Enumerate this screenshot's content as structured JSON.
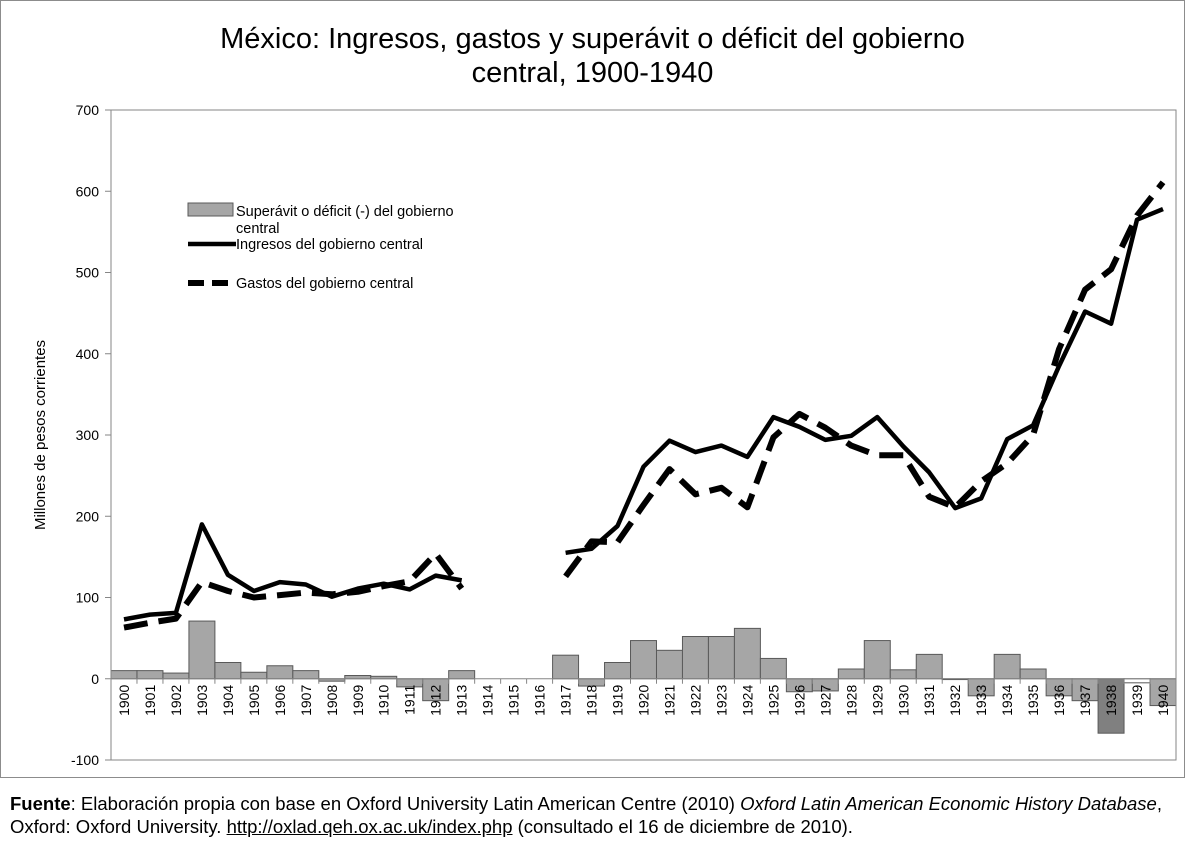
{
  "chart_data": {
    "type": "bar+line",
    "title": "México: Ingresos, gastos y superávit o déficit del gobierno\ncentral, 1900-1940",
    "ylabel": "Millones de pesos corrientes",
    "xlabel": "",
    "ylim": [
      -100,
      700
    ],
    "yticks": [
      -100,
      0,
      100,
      200,
      300,
      400,
      500,
      600,
      700
    ],
    "categories": [
      "1900",
      "1901",
      "1902",
      "1903",
      "1904",
      "1905",
      "1906",
      "1907",
      "1908",
      "1909",
      "1910",
      "1911",
      "1912",
      "1913",
      "1914",
      "1915",
      "1916",
      "1917",
      "1918",
      "1919",
      "1920",
      "1921",
      "1922",
      "1923",
      "1924",
      "1925",
      "1926",
      "1927",
      "1928",
      "1929",
      "1930",
      "1931",
      "1932",
      "1933",
      "1934",
      "1935",
      "1936",
      "1937",
      "1938",
      "1939",
      "1940"
    ],
    "legend_position": "top-left",
    "grid": false,
    "series": [
      {
        "name": "Superávit o déficit (-) del gobierno central",
        "kind": "bar",
        "color": "#a6a6a6",
        "values": [
          10,
          10,
          7,
          71,
          20,
          8,
          16,
          10,
          -3,
          4,
          3,
          -10,
          -27,
          10,
          null,
          null,
          null,
          29,
          -9,
          20,
          47,
          35,
          52,
          52,
          62,
          25,
          -16,
          -15,
          12,
          47,
          11,
          30,
          -1,
          -21,
          30,
          12,
          -21,
          -27,
          -67,
          -5,
          -33
        ],
        "highlight": [
          {
            "category": "1938",
            "color": "#808080"
          },
          {
            "category": "1939",
            "color": "#ffffff"
          }
        ]
      },
      {
        "name": "Ingresos del gobierno central",
        "kind": "line",
        "style": "solid",
        "color": "#000000",
        "values": [
          73,
          79,
          81,
          190,
          128,
          108,
          119,
          116,
          101,
          111,
          117,
          110,
          127,
          121,
          null,
          null,
          null,
          155,
          160,
          188,
          261,
          293,
          279,
          287,
          273,
          322,
          310,
          294,
          299,
          322,
          286,
          254,
          210,
          222,
          295,
          312,
          385,
          452,
          437,
          565,
          578
        ]
      },
      {
        "name": "Gastos del gobierno central",
        "kind": "line",
        "style": "dashed",
        "color": "#000000",
        "values": [
          63,
          69,
          74,
          119,
          108,
          100,
          103,
          106,
          104,
          107,
          114,
          120,
          154,
          111,
          null,
          null,
          null,
          126,
          169,
          168,
          214,
          258,
          227,
          235,
          211,
          297,
          326,
          309,
          287,
          275,
          275,
          224,
          211,
          243,
          265,
          300,
          406,
          479,
          504,
          570,
          611
        ]
      }
    ]
  },
  "source": {
    "label": "Fuente",
    "text1": ": Elaboración propia con base en Oxford University Latin American Centre (2010) ",
    "italic": "Oxford Latin American Economic History Database",
    "text2": ", Oxford: Oxford University. ",
    "link": "http://oxlad.qeh.ox.ac.uk/index.php",
    "text3": " (consultado el 16 de diciembre de 2010)."
  }
}
